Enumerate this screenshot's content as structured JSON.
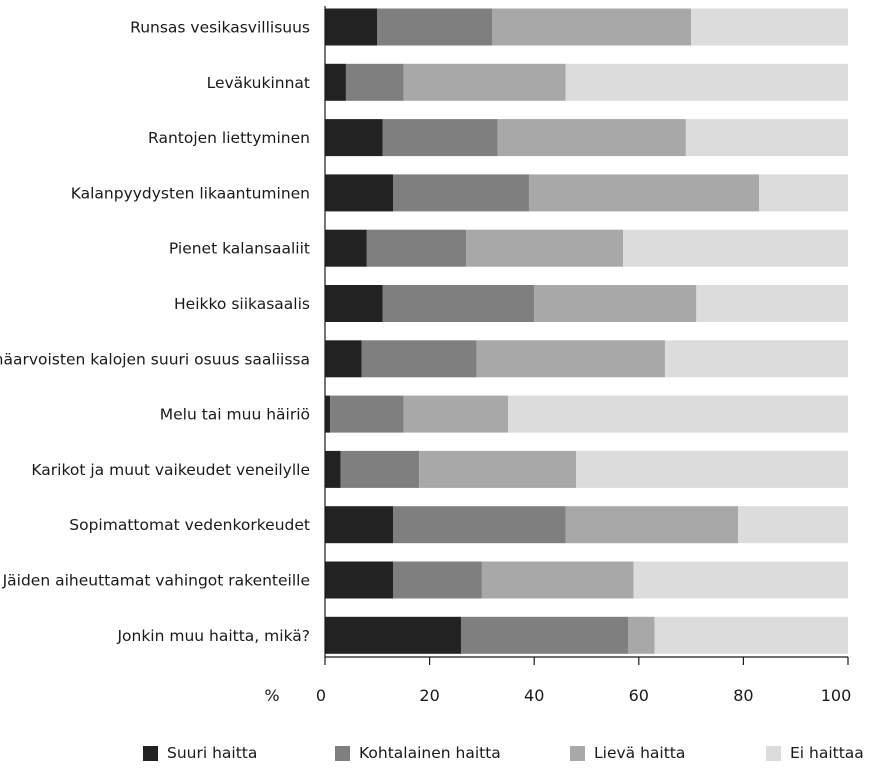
{
  "chart_data": {
    "type": "bar",
    "orientation": "horizontal",
    "stacked": true,
    "categories": [
      "Runsas vesikasvillisuus",
      "Leväkukinnat",
      "Rantojen liettyminen",
      "Kalanpyydysten likaantuminen",
      "Pienet kalansaaliit",
      "Heikko siikasaalis",
      "Vähäarvoisten kalojen suuri osuus saaliissa",
      "Melu tai muu häiriö",
      "Karikot ja muut vaikeudet veneilylle",
      "Sopimattomat vedenkorkeudet",
      "Jäiden aiheuttamat vahingot rakenteille",
      "Jonkin muu haitta, mikä?"
    ],
    "series": [
      {
        "name": "Suuri haitta",
        "color": "#222222",
        "values": [
          10,
          4,
          11,
          13,
          8,
          11,
          7,
          1,
          3,
          13,
          13,
          26
        ]
      },
      {
        "name": "Kohtalainen haitta",
        "color": "#7f7f7f",
        "values": [
          22,
          11,
          22,
          26,
          19,
          29,
          22,
          14,
          15,
          33,
          17,
          32
        ]
      },
      {
        "name": "Lievä haitta",
        "color": "#a8a8a8",
        "values": [
          38,
          31,
          36,
          44,
          30,
          31,
          36,
          20,
          30,
          33,
          29,
          5
        ]
      },
      {
        "name": "Ei haittaa",
        "color": "#dcdcdc",
        "values": [
          30,
          54,
          31,
          17,
          43,
          29,
          35,
          65,
          52,
          21,
          41,
          37
        ]
      }
    ],
    "xlabel": "%",
    "xlim": [
      0,
      100
    ],
    "xticks": [
      0,
      20,
      40,
      60,
      80,
      100
    ],
    "grid": false,
    "legend_position": "bottom"
  }
}
